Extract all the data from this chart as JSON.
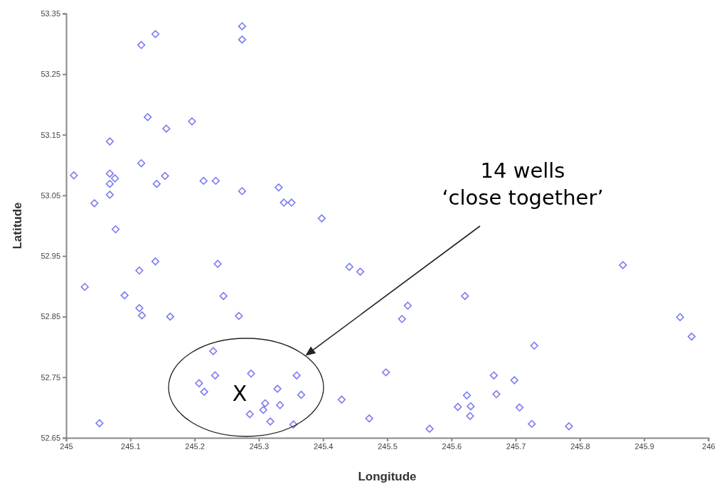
{
  "chart_data": {
    "type": "scatter",
    "xlabel": "Longitude",
    "ylabel": "Latitude",
    "xlim": [
      245,
      246
    ],
    "xticks": [
      245,
      245.1,
      245.2,
      245.3,
      245.4,
      245.5,
      245.6,
      245.7,
      245.8,
      245.9,
      246
    ],
    "ylim": [
      52.65,
      53.35
    ],
    "yticks": [
      52.65,
      52.75,
      52.85,
      52.95,
      53.05,
      53.15,
      53.25,
      53.35
    ],
    "grid": false,
    "marker": "diamond",
    "annotations": [
      "14 wells\n‘close together’",
      "X"
    ],
    "series": [
      {
        "color": "#7b7bef",
        "x": [
          245.117,
          245.139,
          245.274,
          245.274,
          245.127,
          245.196,
          245.156,
          245.068,
          245.117,
          245.012,
          245.068,
          245.076,
          245.068,
          245.154,
          245.141,
          245.214,
          245.233,
          245.068,
          245.274,
          245.331,
          245.339,
          245.351,
          245.044,
          245.077,
          245.398,
          245.139,
          245.236,
          245.114,
          245.029,
          245.091,
          245.245,
          245.114,
          245.118,
          245.162,
          245.269,
          245.229,
          245.232,
          245.288,
          245.207,
          245.215,
          245.329,
          245.31,
          245.333,
          245.307,
          245.286,
          245.318,
          245.052,
          245.354,
          245.441,
          245.458,
          245.621,
          245.532,
          245.523,
          245.867,
          245.956,
          245.974,
          245.729,
          245.359,
          245.366,
          245.498,
          245.429,
          245.472,
          245.566,
          245.666,
          245.698,
          245.624,
          245.67,
          245.61,
          245.63,
          245.706,
          245.629,
          245.725,
          245.783
        ],
        "values": [
          53.298,
          53.316,
          53.329,
          53.307,
          53.179,
          53.172,
          53.16,
          53.139,
          53.103,
          53.083,
          53.086,
          53.078,
          53.069,
          53.082,
          53.069,
          53.074,
          53.074,
          53.051,
          53.057,
          53.063,
          53.038,
          53.038,
          53.037,
          52.994,
          53.012,
          52.941,
          52.937,
          52.926,
          52.899,
          52.885,
          52.884,
          52.864,
          52.852,
          52.85,
          52.851,
          52.793,
          52.753,
          52.756,
          52.74,
          52.726,
          52.731,
          52.707,
          52.704,
          52.696,
          52.689,
          52.677,
          52.674,
          52.672,
          52.932,
          52.924,
          52.884,
          52.868,
          52.846,
          52.935,
          52.849,
          52.817,
          52.802,
          52.753,
          52.721,
          52.758,
          52.713,
          52.682,
          52.665,
          52.753,
          52.745,
          52.72,
          52.722,
          52.701,
          52.702,
          52.7,
          52.686,
          52.673,
          52.669
        ]
      }
    ]
  }
}
